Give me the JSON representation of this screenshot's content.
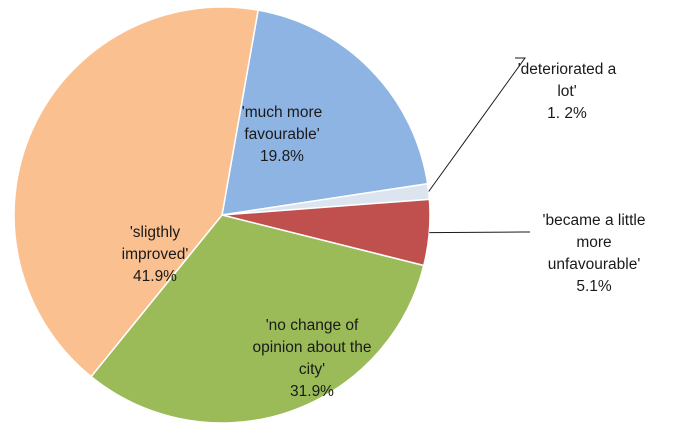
{
  "chart_data": {
    "type": "pie",
    "slices": [
      {
        "label": [
          "'much more",
          "favourable'"
        ],
        "value": 19.8,
        "value_label": "19.8%",
        "color": "#8eb4e3"
      },
      {
        "label": [
          "'deteriorated a",
          "lot'"
        ],
        "value": 1.2,
        "value_label": "1. 2%",
        "color": "#dbe4ef"
      },
      {
        "label": [
          "'became a little",
          "more",
          "unfavourable'"
        ],
        "value": 5.1,
        "value_label": "5.1%",
        "color": "#c0504d"
      },
      {
        "label": [
          "'no change of",
          "opinion about the",
          "city'"
        ],
        "value": 31.9,
        "value_label": "31.9%",
        "color": "#9bbb59"
      },
      {
        "label": [
          "'sligthly",
          "improved'"
        ],
        "value": 41.9,
        "value_label": "41.9%",
        "color": "#fac090"
      }
    ]
  }
}
